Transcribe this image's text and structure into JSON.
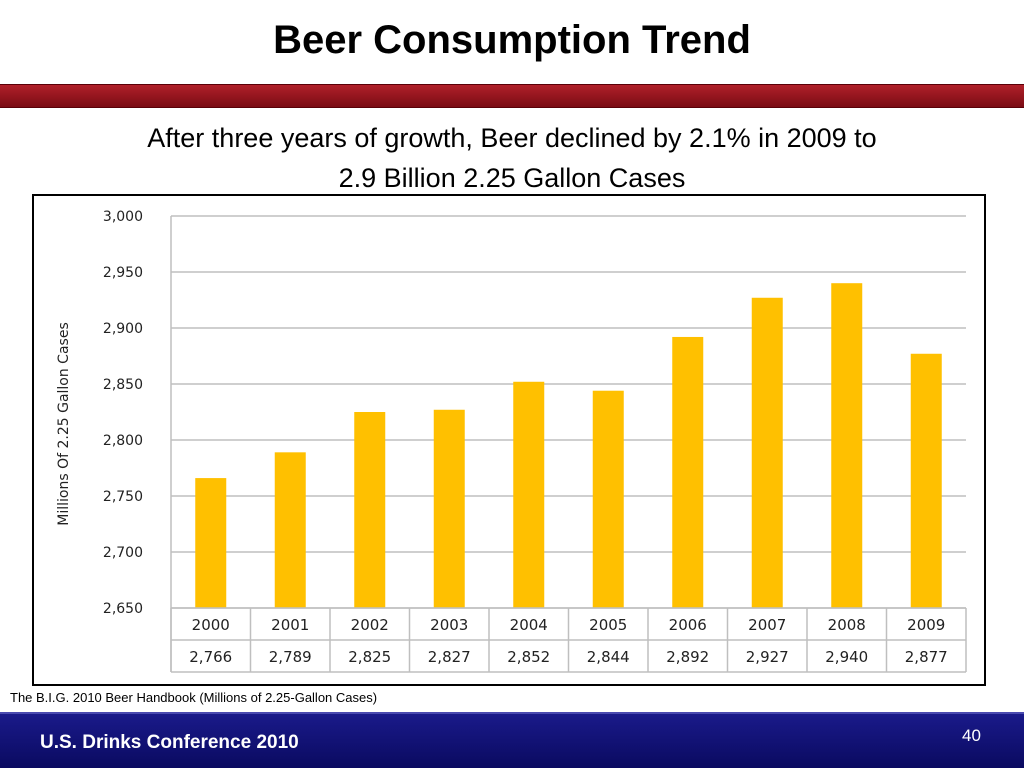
{
  "slide": {
    "title": "Beer Consumption Trend",
    "subtitle_line1": "After three years of growth, Beer declined by 2.1% in 2009 to",
    "subtitle_line2": "2.9 Billion 2.25 Gallon Cases",
    "source": "The B.I.G. 2010 Beer Handbook  (Millions of 2.25-Gallon Cases)",
    "footer": "U.S. Drinks Conference 2010",
    "page_number": "40"
  },
  "colors": {
    "bar": "#FFC000",
    "gridline": "#bfbfbf",
    "table_border": "#bfbfbf",
    "title_rule": "#9b1822",
    "footer_bar": "#12127a"
  },
  "chart_data": {
    "type": "bar",
    "categories": [
      "2000",
      "2001",
      "2002",
      "2003",
      "2004",
      "2005",
      "2006",
      "2007",
      "2008",
      "2009"
    ],
    "values": [
      2766,
      2789,
      2825,
      2827,
      2852,
      2844,
      2892,
      2927,
      2940,
      2877
    ],
    "value_labels": [
      "2,766",
      "2,789",
      "2,825",
      "2,827",
      "2,852",
      "2,844",
      "2,892",
      "2,927",
      "2,940",
      "2,877"
    ],
    "ylabel": "Millions Of  2.25 Gallon Cases",
    "ylim": [
      2650,
      3000
    ],
    "yticks": [
      2650,
      2700,
      2750,
      2800,
      2850,
      2900,
      2950,
      3000
    ],
    "ytick_labels": [
      "2,650",
      "2,700",
      "2,750",
      "2,800",
      "2,850",
      "2,900",
      "2,950",
      "3,000"
    ],
    "grid": true,
    "data_table": true
  }
}
